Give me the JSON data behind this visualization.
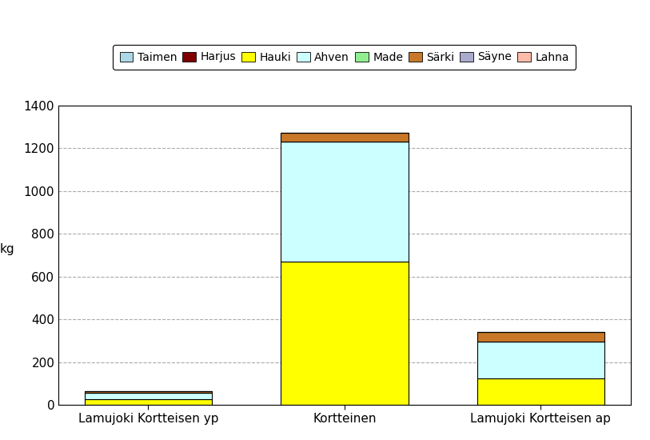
{
  "categories": [
    "Lamujoki Kortteisen yp",
    "Kortteinen",
    "Lamujoki Kortteisen ap"
  ],
  "species": [
    "Taimen",
    "Harjus",
    "Hauki",
    "Ahven",
    "Made",
    "Särki",
    "Säyne",
    "Lahna"
  ],
  "colors": [
    "#add8e6",
    "#800000",
    "#ffff00",
    "#ccffff",
    "#90ee90",
    "#c87828",
    "#aaaacc",
    "#ffbbaa"
  ],
  "data": {
    "Taimen": [
      0,
      0,
      0
    ],
    "Harjus": [
      0,
      0,
      0
    ],
    "Hauki": [
      25,
      670,
      125
    ],
    "Ahven": [
      30,
      560,
      170
    ],
    "Made": [
      0,
      0,
      0
    ],
    "Särki": [
      10,
      42,
      45
    ],
    "Säyne": [
      0,
      0,
      0
    ],
    "Lahna": [
      0,
      0,
      0
    ]
  },
  "ylabel": "kg",
  "ylim": [
    0,
    1400
  ],
  "yticks": [
    0,
    200,
    400,
    600,
    800,
    1000,
    1200,
    1400
  ],
  "background_color": "#ffffff",
  "bar_edge_color": "#000000",
  "bar_width": 0.65,
  "legend_fontsize": 10,
  "ylabel_fontsize": 11,
  "tick_fontsize": 11,
  "xlabel_fontsize": 11,
  "grid_color": "#aaaaaa",
  "grid_style": "--"
}
